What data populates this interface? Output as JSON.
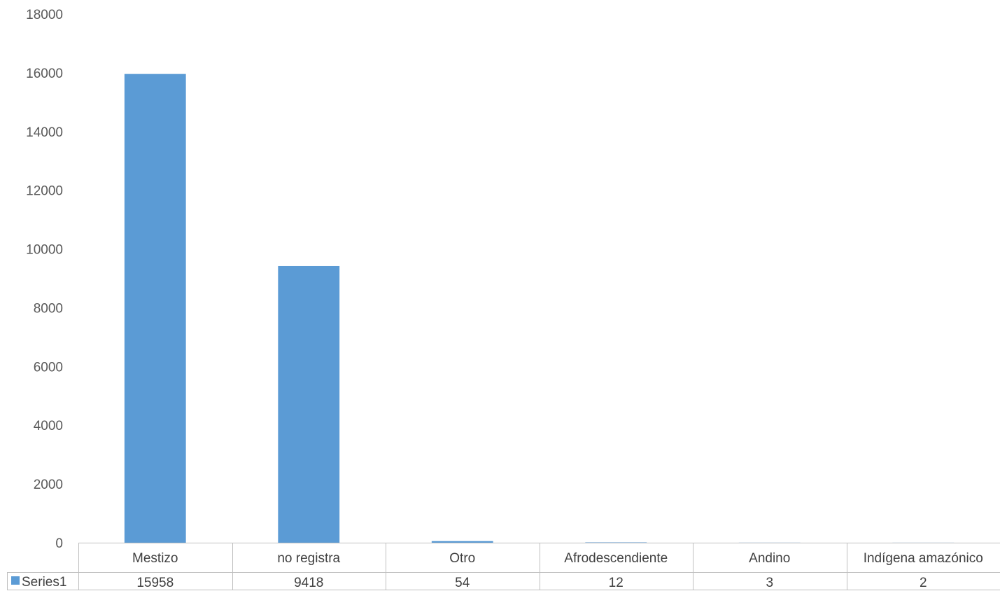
{
  "chart_data": {
    "type": "bar",
    "categories": [
      "Mestizo",
      "no registra",
      "Otro",
      "Afrodescendiente",
      "Andino",
      "Indígena amazónico"
    ],
    "series": [
      {
        "name": "Series1",
        "values": [
          15958,
          9418,
          54,
          12,
          3,
          2
        ]
      }
    ],
    "yticks": [
      "0",
      "2000",
      "4000",
      "6000",
      "8000",
      "10000",
      "12000",
      "14000",
      "16000",
      "18000"
    ],
    "ylim": [
      0,
      18000
    ],
    "grid": false,
    "legend": "data-table",
    "colors": {
      "bar": "#5B9BD5",
      "table_border": "#BFBFBF"
    }
  }
}
